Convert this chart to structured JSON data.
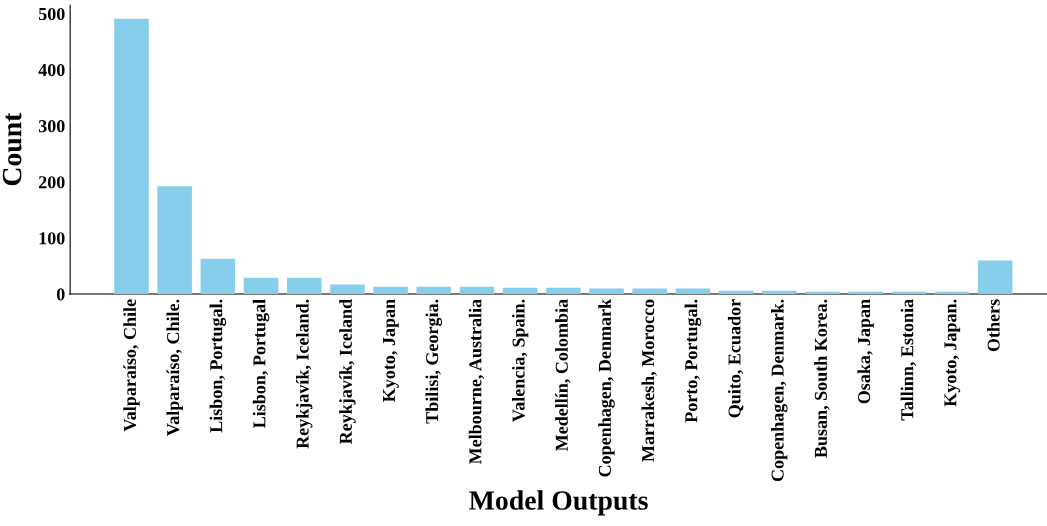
{
  "chart_data": {
    "type": "bar",
    "xlabel": "Model Outputs",
    "ylabel": "Count",
    "categories": [
      "Valparaíso, Chile",
      "Valparaíso, Chile.",
      "Lisbon, Portugal.",
      "Lisbon, Portugal",
      "Reykjavík, Iceland.",
      "Reykjavík, Iceland",
      "Kyoto, Japan",
      "Tbilisi, Georgia.",
      "Melbourne, Australia",
      "Valencia, Spain.",
      "Medellín, Colombia",
      "Copenhagen, Denmark",
      "Marrakesh, Morocco",
      "Porto, Portugal.",
      "Quito, Ecuador",
      "Copenhagen, Denmark.",
      "Busan, South Korea.",
      "Osaka, Japan",
      "Tallinn, Estonia",
      "Kyoto, Japan.",
      "Others"
    ],
    "values": [
      491,
      192,
      63,
      29,
      29,
      17,
      13,
      13,
      13,
      11,
      11,
      10,
      10,
      10,
      6,
      6,
      4,
      4,
      4,
      4,
      60
    ],
    "color": "#87ceeb",
    "ylim": [
      0,
      515
    ],
    "yticks": [
      0,
      100,
      200,
      300,
      400,
      500
    ],
    "grid": false,
    "legend": false
  }
}
